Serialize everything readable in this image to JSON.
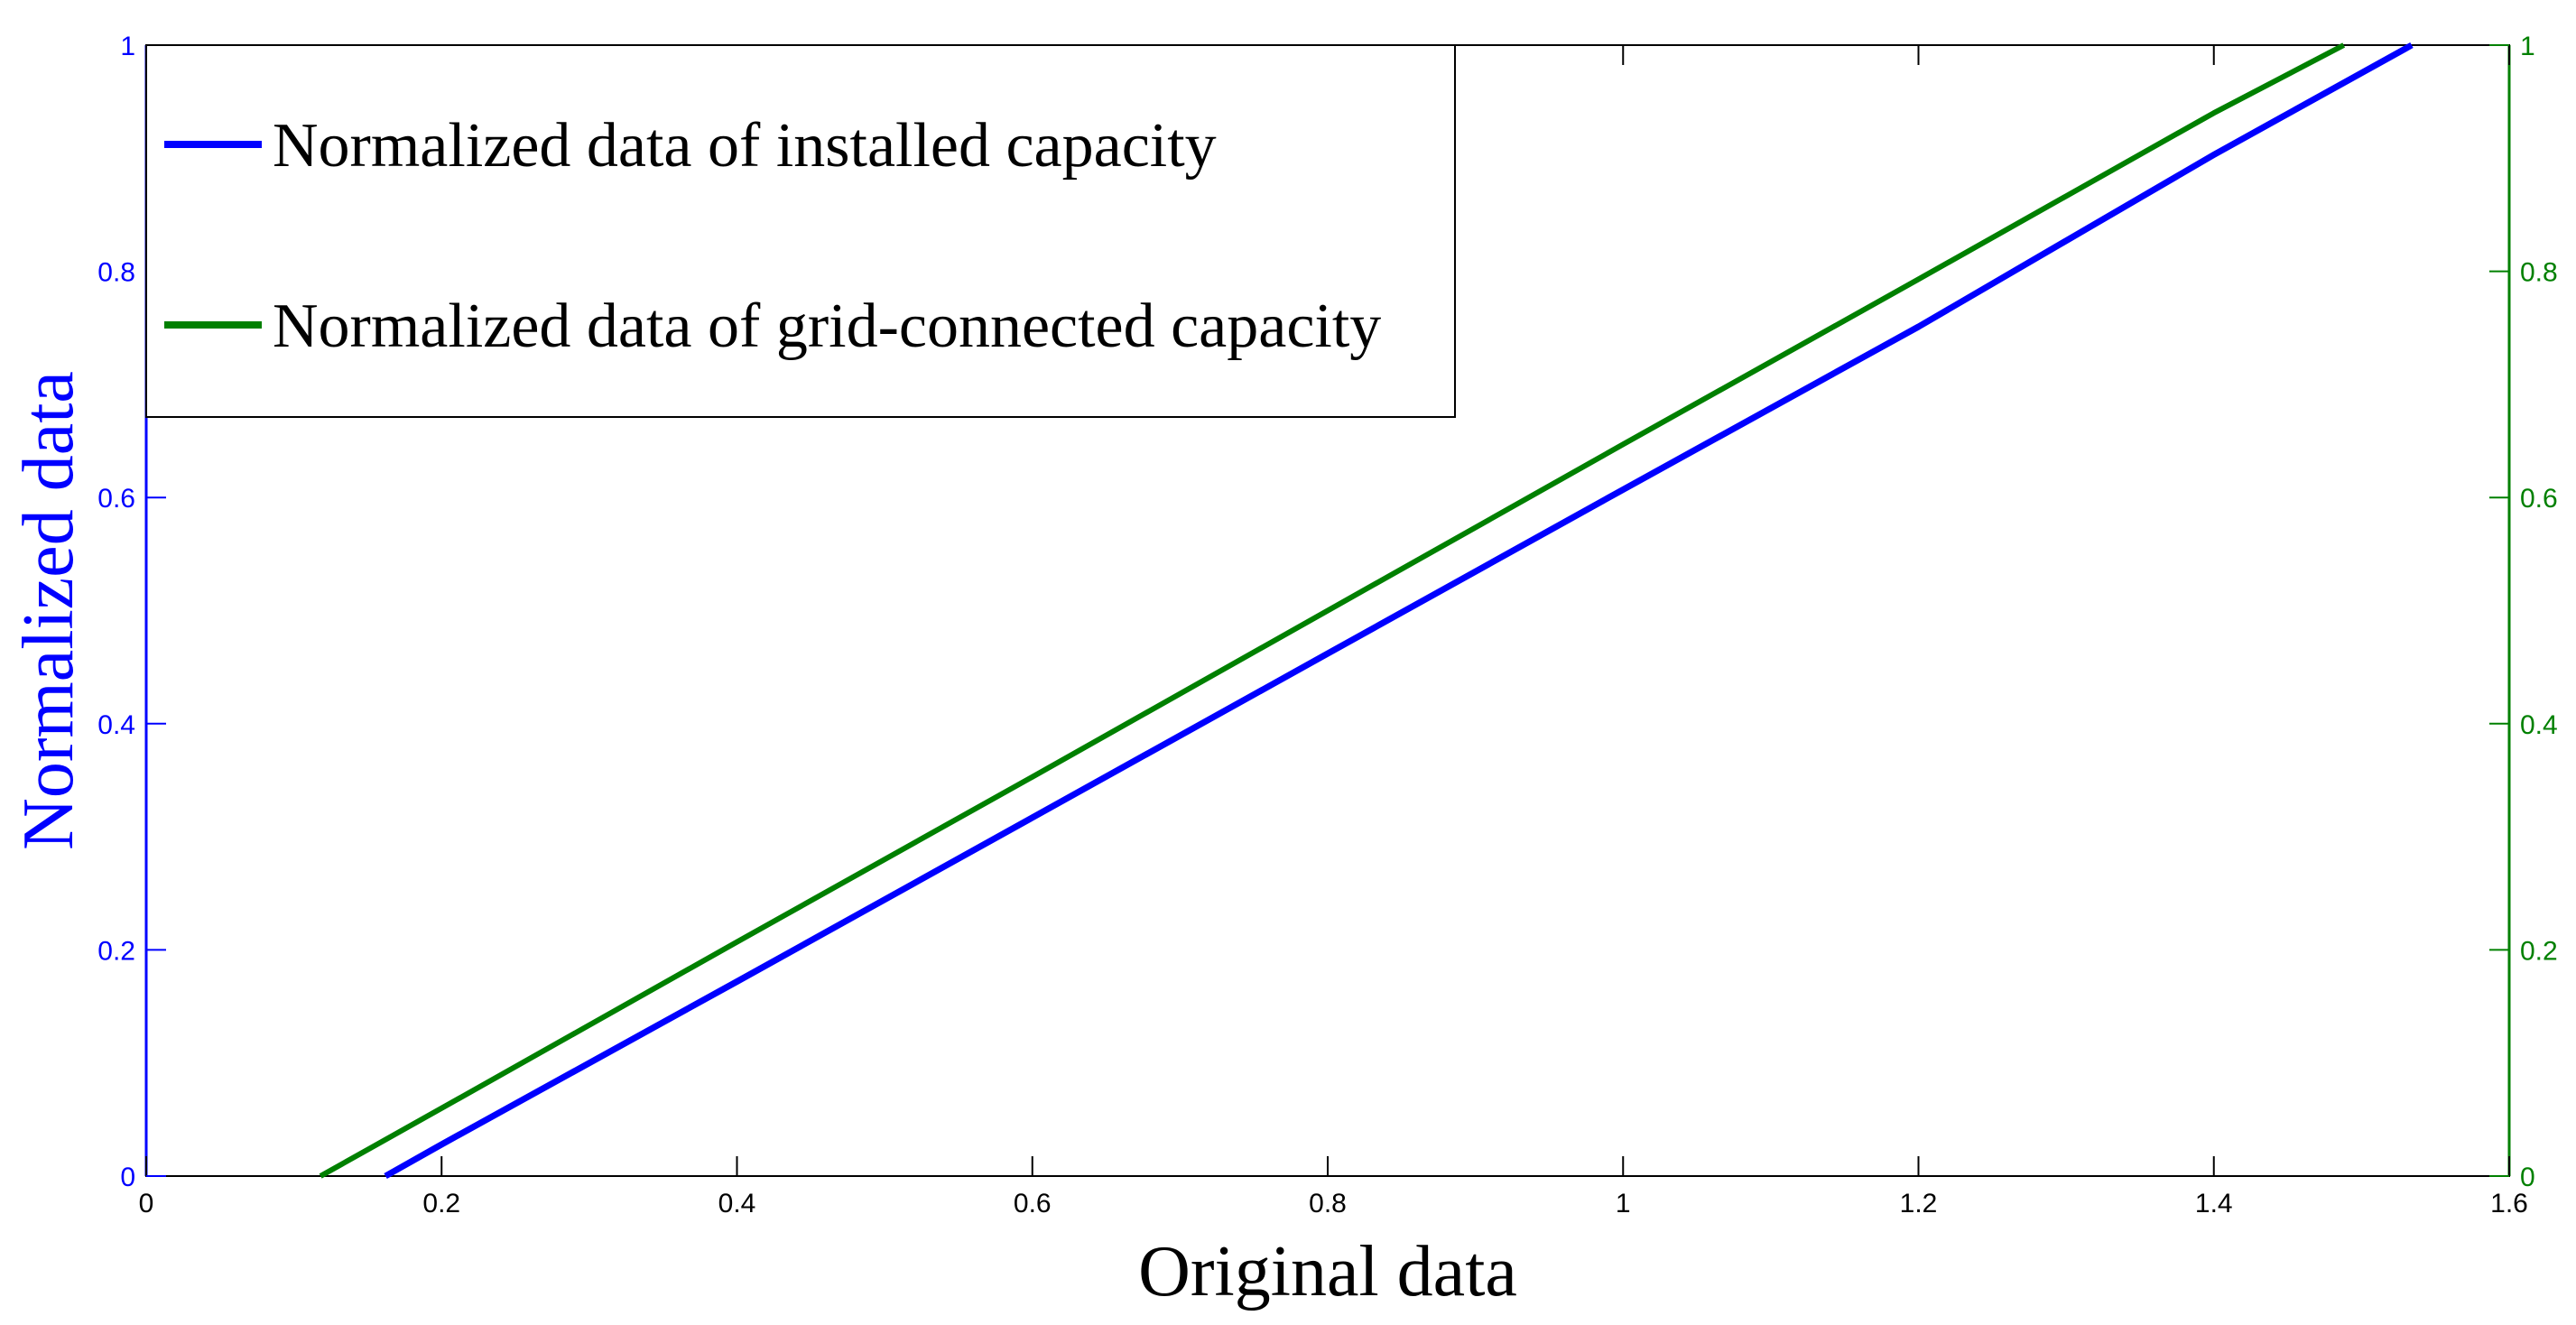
{
  "chart_data": {
    "type": "line",
    "title": "",
    "xlabel": "Original data",
    "ylabel": "Normalized data",
    "xlim": [
      0,
      1.6
    ],
    "ylim": [
      0,
      1
    ],
    "ylim_right": [
      0,
      1
    ],
    "x_ticks": [
      "0",
      "0.2",
      "0.4",
      "0.6",
      "0.8",
      "1",
      "1.2",
      "1.4",
      "1.6"
    ],
    "y_ticks": [
      "0",
      "0.2",
      "0.4",
      "0.6",
      "0.8",
      "1"
    ],
    "y_ticks_right": [
      "0",
      "0.2",
      "0.4",
      "0.6",
      "0.8",
      "1"
    ],
    "grid": false,
    "legend_position": "top-left",
    "series": [
      {
        "name": "Normalized data of installed capacity",
        "color": "#0000ff",
        "axis": "left",
        "x": [
          0.162,
          0.2,
          0.4,
          0.6,
          0.8,
          1.0,
          1.2,
          1.4,
          1.534
        ],
        "y": [
          0.0,
          0.028,
          0.172,
          0.317,
          0.462,
          0.607,
          0.751,
          0.903,
          1.0
        ]
      },
      {
        "name": "Normalized data of grid-connected capacity",
        "color": "#008000",
        "axis": "right",
        "x": [
          0.118,
          0.2,
          0.4,
          0.6,
          0.8,
          1.0,
          1.2,
          1.4,
          1.488
        ],
        "y": [
          0.0,
          0.06,
          0.207,
          0.353,
          0.5,
          0.647,
          0.793,
          0.94,
          1.0
        ]
      }
    ]
  }
}
